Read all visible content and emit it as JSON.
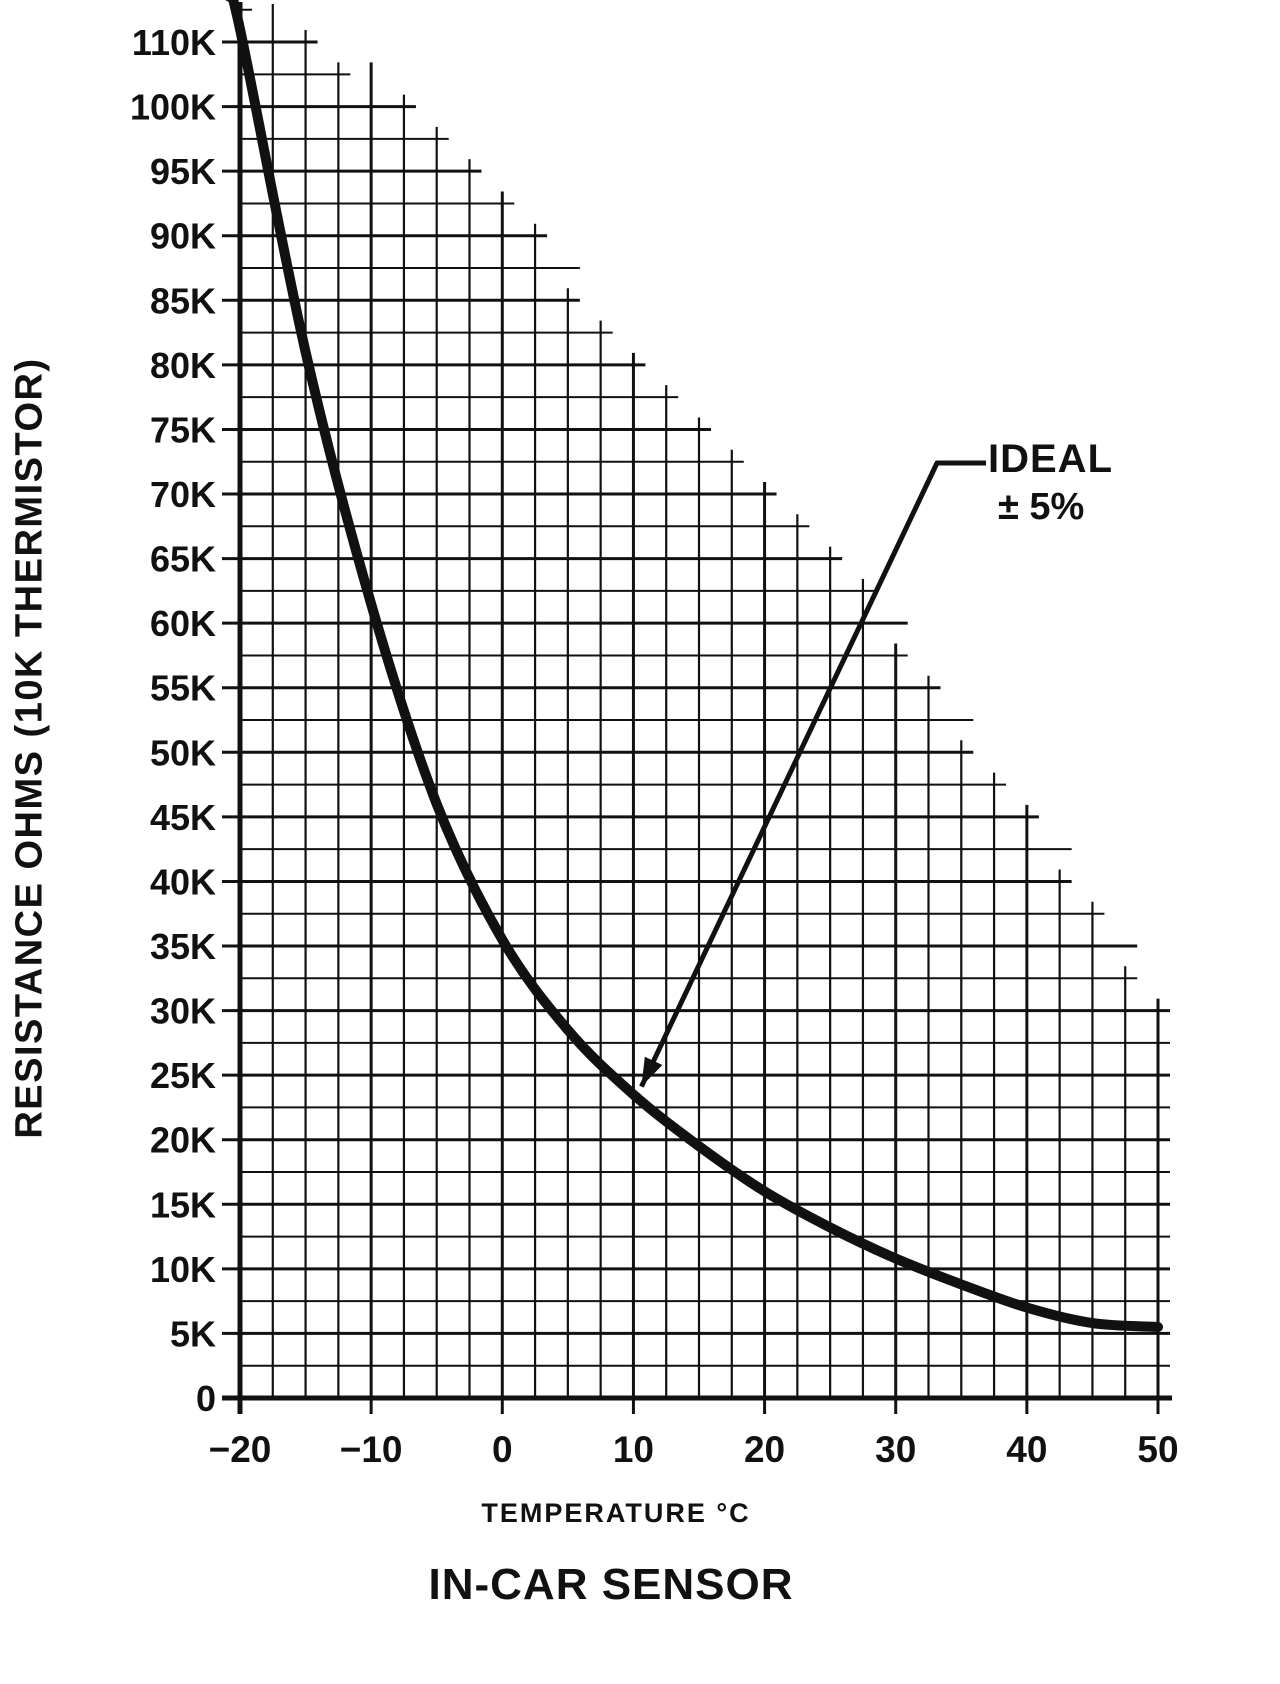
{
  "figure": {
    "background": "#ffffff",
    "ink": "#111111"
  },
  "axis": {
    "x_title": "TEMPERATURE °C",
    "y_title": "RESISTANCE OHMS (10K THERMISTOR)"
  },
  "caption": "IN-CAR SENSOR",
  "annotation": {
    "line1": "IDEAL",
    "line2": "± 5%"
  },
  "chart_data": {
    "type": "line",
    "title": "IN-CAR SENSOR",
    "xlabel": "TEMPERATURE °C",
    "ylabel": "RESISTANCE OHMS (10K THERMISTOR)",
    "xlim": [
      -20,
      50
    ],
    "ylim": [
      0,
      115
    ],
    "grid": "on",
    "y_unit": "ohms (K = x1000)",
    "x_ticks": [
      -20,
      -10,
      0,
      10,
      20,
      30,
      40,
      50
    ],
    "x_tick_labels": [
      "−20",
      "−10",
      "0",
      "10",
      "20",
      "30",
      "40",
      "50"
    ],
    "y_tick_values": [
      0,
      5,
      10,
      15,
      20,
      25,
      30,
      35,
      40,
      45,
      50,
      55,
      60,
      65,
      70,
      75,
      80,
      85,
      90,
      95,
      100,
      110
    ],
    "y_tick_labels": [
      "0",
      "5K",
      "10K",
      "15K",
      "20K",
      "25K",
      "30K",
      "35K",
      "40K",
      "45K",
      "50K",
      "55K",
      "60K",
      "65K",
      "70K",
      "75K",
      "80K",
      "85K",
      "90K",
      "95K",
      "100K",
      "110K"
    ],
    "series": [
      {
        "name": "10K thermistor resistance vs temperature (IDEAL ± 5%)",
        "x": [
          -20,
          -15,
          -10,
          -5,
          0,
          5,
          10,
          15,
          20,
          25,
          30,
          35,
          40,
          45,
          50
        ],
        "values": [
          112,
          81,
          61.5,
          46,
          35.5,
          28.5,
          23.5,
          19.5,
          16,
          13.2,
          10.8,
          8.8,
          7,
          5.8,
          5.5
        ]
      }
    ],
    "annotation": {
      "text": "IDEAL ± 5%",
      "target_x": 10,
      "target_y": 23.5
    }
  }
}
